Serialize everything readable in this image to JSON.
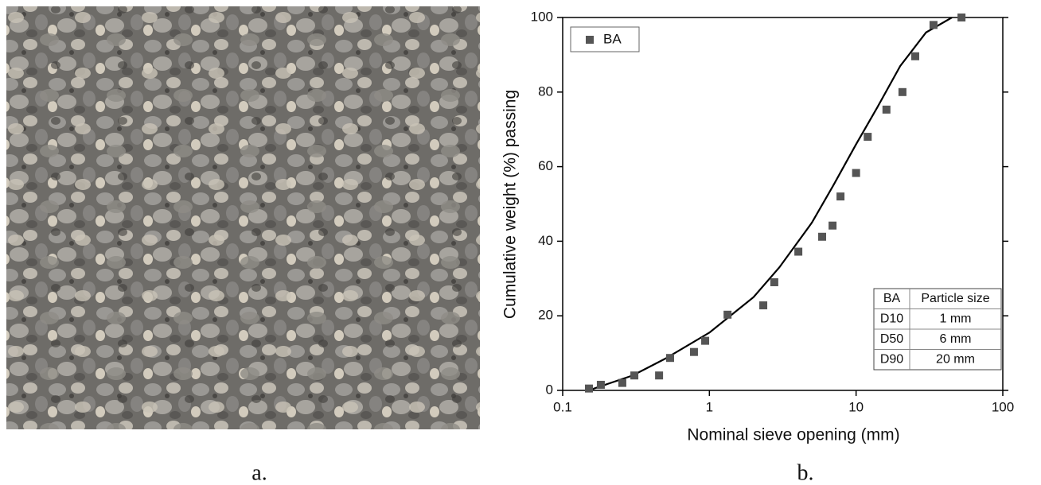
{
  "panel_labels": [
    "a.",
    "b."
  ],
  "chart_data": {
    "type": "scatter",
    "x_label": "Nominal sieve opening (mm)",
    "y_label": "Cumulative weight (%) passing",
    "xscale": "log",
    "xlim": [
      0.1,
      100
    ],
    "xticks": [
      0.1,
      1,
      10,
      100
    ],
    "ylim": [
      0,
      100
    ],
    "yticks": [
      0,
      20,
      40,
      60,
      80,
      100
    ],
    "legend_position": "upper-left",
    "series": [
      {
        "name": "BA",
        "color": "#555555",
        "x": [
          0.151,
          0.182,
          0.255,
          0.308,
          0.454,
          0.54,
          0.785,
          0.936,
          1.33,
          2.33,
          2.77,
          4.04,
          5.87,
          6.91,
          7.83,
          10.0,
          12.0,
          16.1,
          20.7,
          25.3,
          33.7,
          52.3
        ],
        "values": [
          0.5,
          1.5,
          2,
          4,
          4,
          8.7,
          10.3,
          13.3,
          20.3,
          22.8,
          29,
          37.2,
          41.2,
          44.2,
          52,
          58.3,
          68,
          75.3,
          80,
          89.6,
          98,
          100
        ]
      }
    ],
    "fit_curve": {
      "color": "#000000",
      "x": [
        0.15,
        0.3,
        0.5,
        1,
        2,
        3,
        5,
        7,
        10,
        14,
        20,
        30,
        45
      ],
      "values": [
        0,
        4,
        8.5,
        15.5,
        25,
        33,
        45,
        55,
        66,
        76,
        87,
        96,
        100
      ]
    },
    "table": {
      "header": [
        "BA",
        "Particle size"
      ],
      "rows": [
        [
          "D10",
          "1 mm"
        ],
        [
          "D50",
          "6 mm"
        ],
        [
          "D90",
          "20 mm"
        ]
      ]
    }
  }
}
